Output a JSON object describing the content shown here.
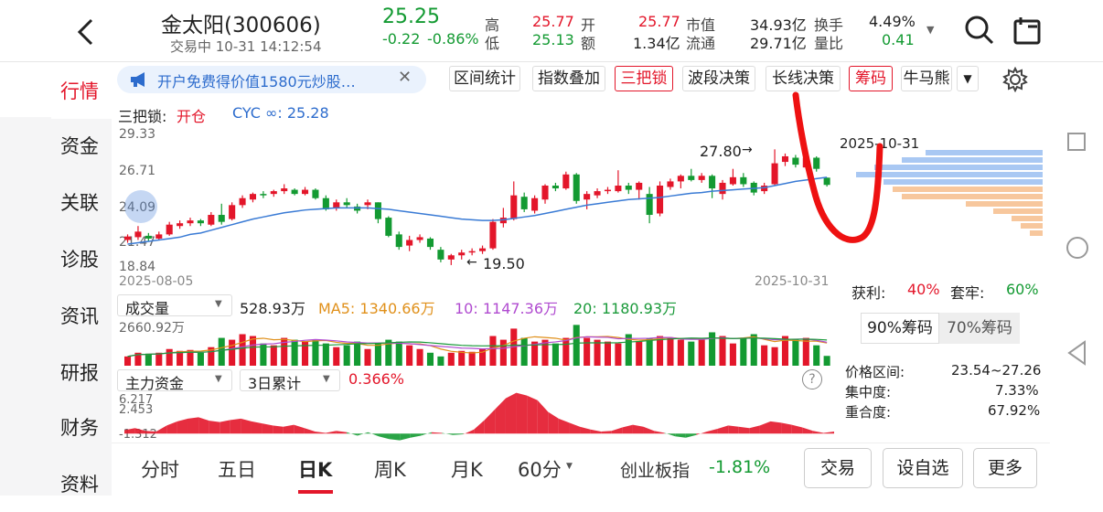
{
  "header": {
    "name": "金太阳(300606)",
    "status": "交易中 10-31 14:12:54",
    "price": "25.25",
    "change": "-0.22",
    "change_pct": "-0.86%",
    "stats": {
      "high_l": "高",
      "high": "25.77",
      "open_l": "开",
      "open": "25.77",
      "mv_l": "市值",
      "mv": "34.93亿",
      "turn_l": "换手",
      "turn": "4.49%",
      "low_l": "低",
      "low": "25.13",
      "amt_l": "额",
      "amt": "1.34亿",
      "fmv_l": "流通",
      "fmv": "29.71亿",
      "vr_l": "量比",
      "vr": "0.41"
    }
  },
  "sidebar": {
    "items": [
      {
        "label": "行情"
      },
      {
        "label": "资金"
      },
      {
        "label": "关联"
      },
      {
        "label": "诊股"
      },
      {
        "label": "资讯"
      },
      {
        "label": "研报"
      },
      {
        "label": "财务"
      },
      {
        "label": "资料"
      }
    ]
  },
  "ad": {
    "text": "开户免费得价值1580元炒股…"
  },
  "tools": [
    "区间统计",
    "指数叠加",
    "三把锁",
    "波段决策",
    "长线决策",
    "筹码",
    "牛马熊"
  ],
  "kline": {
    "indicator": "三把锁:",
    "state": "开仓",
    "cyc": "CYC ∞: 25.28",
    "y_ticks": [
      "29.33",
      "26.71",
      "24.09",
      "21.47",
      "18.84"
    ],
    "start_date": "2025-08-05",
    "end_date": "2025-10-31",
    "high_mark": "27.80",
    "low_mark": "19.50"
  },
  "volume": {
    "selector": "成交量",
    "value": "528.93万",
    "ma5": "MA5: 1340.66万",
    "ma10": "10: 1147.36万",
    "ma20": "20: 1180.93万",
    "ymax": "2660.92万"
  },
  "capital": {
    "selector": "主力资金",
    "period": "3日累计",
    "value": "0.366%",
    "y_top": "6.217",
    "y_mid": "2.453",
    "y_low": "-1.312",
    "help": "?"
  },
  "chips": {
    "date": "2025-10-31",
    "profit_l": "获利:",
    "profit": "40%",
    "trap_l": "套牢:",
    "trap": "60%",
    "tab90": "90%筹码",
    "tab70": "70%筹码",
    "range_l": "价格区间:",
    "range": "23.54~27.26",
    "conc_l": "集中度:",
    "conc": "7.33%",
    "overlap_l": "重合度:",
    "overlap": "67.92%"
  },
  "bottom": {
    "tabs": [
      "分时",
      "五日",
      "日K",
      "周K",
      "月K",
      "60分"
    ],
    "index_name": "创业板指",
    "index_chg": "-1.81%",
    "trade": "交易",
    "watch": "设自选",
    "more": "更多"
  },
  "candles": [
    {
      "o": 21.3,
      "c": 21.55,
      "h": 21.7,
      "l": 21.1
    },
    {
      "o": 21.5,
      "c": 21.9,
      "h": 22.3,
      "l": 21.3
    },
    {
      "o": 21.6,
      "c": 21.4,
      "h": 21.8,
      "l": 21.2
    },
    {
      "o": 21.4,
      "c": 21.7,
      "h": 21.9,
      "l": 21.3
    },
    {
      "o": 21.7,
      "c": 22.4,
      "h": 22.6,
      "l": 21.6
    },
    {
      "o": 22.3,
      "c": 22.5,
      "h": 22.7,
      "l": 22.1
    },
    {
      "o": 22.5,
      "c": 22.7,
      "h": 22.9,
      "l": 22.3
    },
    {
      "o": 22.7,
      "c": 22.5,
      "h": 22.8,
      "l": 22.3
    },
    {
      "o": 22.4,
      "c": 23.1,
      "h": 23.3,
      "l": 22.3
    },
    {
      "o": 23.1,
      "c": 22.6,
      "h": 23.9,
      "l": 22.4
    },
    {
      "o": 22.8,
      "c": 23.8,
      "h": 24.0,
      "l": 22.7
    },
    {
      "o": 23.8,
      "c": 24.3,
      "h": 24.5,
      "l": 23.6
    },
    {
      "o": 24.2,
      "c": 24.6,
      "h": 24.7,
      "l": 24.0
    },
    {
      "o": 24.6,
      "c": 24.5,
      "h": 24.8,
      "l": 24.3
    },
    {
      "o": 24.6,
      "c": 24.8,
      "h": 24.9,
      "l": 24.4
    },
    {
      "o": 24.8,
      "c": 25.0,
      "h": 25.3,
      "l": 24.6
    },
    {
      "o": 24.9,
      "c": 24.6,
      "h": 25.0,
      "l": 24.5
    },
    {
      "o": 24.6,
      "c": 24.9,
      "h": 25.1,
      "l": 24.5
    },
    {
      "o": 24.9,
      "c": 24.3,
      "h": 25.0,
      "l": 24.2
    },
    {
      "o": 24.3,
      "c": 23.5,
      "h": 24.5,
      "l": 23.4
    },
    {
      "o": 23.6,
      "c": 24.0,
      "h": 24.2,
      "l": 23.4
    },
    {
      "o": 24.0,
      "c": 23.8,
      "h": 24.3,
      "l": 23.6
    },
    {
      "o": 23.7,
      "c": 23.4,
      "h": 23.9,
      "l": 23.2
    },
    {
      "o": 23.8,
      "c": 24.0,
      "h": 24.2,
      "l": 23.5
    },
    {
      "o": 24.0,
      "c": 22.8,
      "h": 24.0,
      "l": 22.5
    },
    {
      "o": 22.9,
      "c": 21.6,
      "h": 23.0,
      "l": 21.5
    },
    {
      "o": 21.7,
      "c": 20.8,
      "h": 21.9,
      "l": 20.6
    },
    {
      "o": 20.9,
      "c": 21.3,
      "h": 21.6,
      "l": 20.5
    },
    {
      "o": 21.3,
      "c": 21.5,
      "h": 21.7,
      "l": 21.1
    },
    {
      "o": 21.4,
      "c": 20.8,
      "h": 21.5,
      "l": 20.6
    },
    {
      "o": 20.6,
      "c": 19.9,
      "h": 20.8,
      "l": 19.7
    },
    {
      "o": 19.9,
      "c": 20.2,
      "h": 20.3,
      "l": 19.5
    },
    {
      "o": 20.2,
      "c": 20.4,
      "h": 20.6,
      "l": 19.9
    },
    {
      "o": 20.4,
      "c": 20.5,
      "h": 20.7,
      "l": 20.2
    },
    {
      "o": 20.5,
      "c": 20.7,
      "h": 20.9,
      "l": 20.3
    },
    {
      "o": 20.7,
      "c": 22.6,
      "h": 22.8,
      "l": 20.6
    },
    {
      "o": 22.5,
      "c": 22.9,
      "h": 23.6,
      "l": 22.2
    },
    {
      "o": 22.8,
      "c": 24.5,
      "h": 25.5,
      "l": 22.7
    },
    {
      "o": 24.4,
      "c": 23.5,
      "h": 24.7,
      "l": 23.3
    },
    {
      "o": 23.4,
      "c": 24.3,
      "h": 24.5,
      "l": 23.2
    },
    {
      "o": 24.2,
      "c": 25.2,
      "h": 25.3,
      "l": 23.9
    },
    {
      "o": 25.2,
      "c": 25.0,
      "h": 25.4,
      "l": 24.8
    },
    {
      "o": 25.0,
      "c": 26.0,
      "h": 26.2,
      "l": 24.9
    },
    {
      "o": 26.0,
      "c": 24.1,
      "h": 26.1,
      "l": 23.9
    },
    {
      "o": 24.2,
      "c": 24.6,
      "h": 24.8,
      "l": 23.5
    },
    {
      "o": 24.5,
      "c": 24.8,
      "h": 25.0,
      "l": 24.3
    },
    {
      "o": 24.8,
      "c": 24.9,
      "h": 25.1,
      "l": 24.6
    },
    {
      "o": 24.8,
      "c": 25.2,
      "h": 26.3,
      "l": 24.7
    },
    {
      "o": 25.2,
      "c": 24.9,
      "h": 25.4,
      "l": 24.6
    },
    {
      "o": 24.9,
      "c": 25.4,
      "h": 25.5,
      "l": 24.2
    },
    {
      "o": 24.6,
      "c": 23.1,
      "h": 25.1,
      "l": 22.5
    },
    {
      "o": 23.2,
      "c": 25.2,
      "h": 25.5,
      "l": 23.0
    },
    {
      "o": 25.1,
      "c": 25.5,
      "h": 25.7,
      "l": 24.9
    },
    {
      "o": 25.5,
      "c": 25.9,
      "h": 26.0,
      "l": 25.0
    },
    {
      "o": 25.9,
      "c": 25.6,
      "h": 26.4,
      "l": 25.5
    },
    {
      "o": 25.6,
      "c": 25.9,
      "h": 26.1,
      "l": 25.4
    },
    {
      "o": 25.9,
      "c": 25.0,
      "h": 26.0,
      "l": 24.3
    },
    {
      "o": 24.6,
      "c": 25.4,
      "h": 25.6,
      "l": 24.2
    },
    {
      "o": 25.3,
      "c": 25.8,
      "h": 26.4,
      "l": 25.2
    },
    {
      "o": 25.8,
      "c": 25.3,
      "h": 26.1,
      "l": 25.1
    },
    {
      "o": 25.4,
      "c": 24.7,
      "h": 25.5,
      "l": 24.5
    },
    {
      "o": 24.8,
      "c": 25.2,
      "h": 25.4,
      "l": 24.6
    },
    {
      "o": 25.3,
      "c": 26.8,
      "h": 27.8,
      "l": 25.2
    },
    {
      "o": 26.9,
      "c": 27.3,
      "h": 27.5,
      "l": 26.6
    },
    {
      "o": 27.2,
      "c": 26.7,
      "h": 27.4,
      "l": 26.5
    },
    {
      "o": 26.5,
      "c": 27.2,
      "h": 27.4,
      "l": 26.4
    },
    {
      "o": 27.2,
      "c": 26.4,
      "h": 27.3,
      "l": 26.2
    },
    {
      "o": 25.77,
      "c": 25.25,
      "h": 25.77,
      "l": 25.13
    }
  ],
  "ma_line": [
    21.0,
    21.1,
    21.2,
    21.3,
    21.4,
    21.5,
    21.7,
    21.8,
    22.0,
    22.2,
    22.4,
    22.6,
    22.8,
    22.95,
    23.1,
    23.25,
    23.35,
    23.45,
    23.5,
    23.55,
    23.6,
    23.6,
    23.6,
    23.6,
    23.55,
    23.5,
    23.4,
    23.3,
    23.2,
    23.1,
    23.0,
    22.9,
    22.8,
    22.75,
    22.7,
    22.7,
    22.75,
    22.85,
    22.95,
    23.05,
    23.2,
    23.35,
    23.5,
    23.65,
    23.8,
    23.9,
    24.0,
    24.1,
    24.2,
    24.25,
    24.3,
    24.35,
    24.45,
    24.55,
    24.65,
    24.7,
    24.8,
    24.85,
    24.9,
    24.95,
    25.0,
    25.05,
    25.2,
    25.35,
    25.5,
    25.6,
    25.7,
    25.8
  ],
  "volumes": [
    500,
    700,
    650,
    700,
    900,
    800,
    850,
    700,
    1000,
    1500,
    1400,
    1700,
    1600,
    1200,
    1100,
    1500,
    1400,
    1300,
    1400,
    1200,
    1000,
    1100,
    1300,
    900,
    1200,
    1400,
    1300,
    1100,
    900,
    700,
    500,
    700,
    800,
    750,
    900,
    1600,
    1400,
    2000,
    1500,
    1300,
    1400,
    1200,
    1500,
    2200,
    1500,
    1400,
    1300,
    1200,
    1700,
    1300,
    1500,
    1600,
    1500,
    1400,
    1300,
    1400,
    1800,
    1600,
    1200,
    1500,
    1700,
    1100,
    1000,
    1600,
    1400,
    1500,
    1100,
    529
  ],
  "capital_flow": [
    0.5,
    0.8,
    0.4,
    0.3,
    1.2,
    1.8,
    2.2,
    2.4,
    1.9,
    1.7,
    2.0,
    2.2,
    1.8,
    1.5,
    1.2,
    1.0,
    1.3,
    0.8,
    0.3,
    0.1,
    0.4,
    0.2,
    -0.3,
    0.2,
    -0.4,
    -0.8,
    -1.0,
    -0.6,
    -0.3,
    0.2,
    0.1,
    -0.2,
    -0.1,
    0.6,
    2.0,
    3.6,
    5.2,
    6.0,
    5.6,
    4.9,
    3.2,
    2.2,
    1.6,
    1.0,
    0.6,
    0.3,
    0.4,
    0.9,
    1.3,
    1.0,
    0.4,
    0.1,
    -0.4,
    -0.6,
    -0.2,
    0.3,
    0.7,
    1.2,
    1.0,
    0.8,
    1.2,
    1.8,
    1.6,
    1.3,
    0.9,
    0.4,
    0.1,
    0.3
  ]
}
